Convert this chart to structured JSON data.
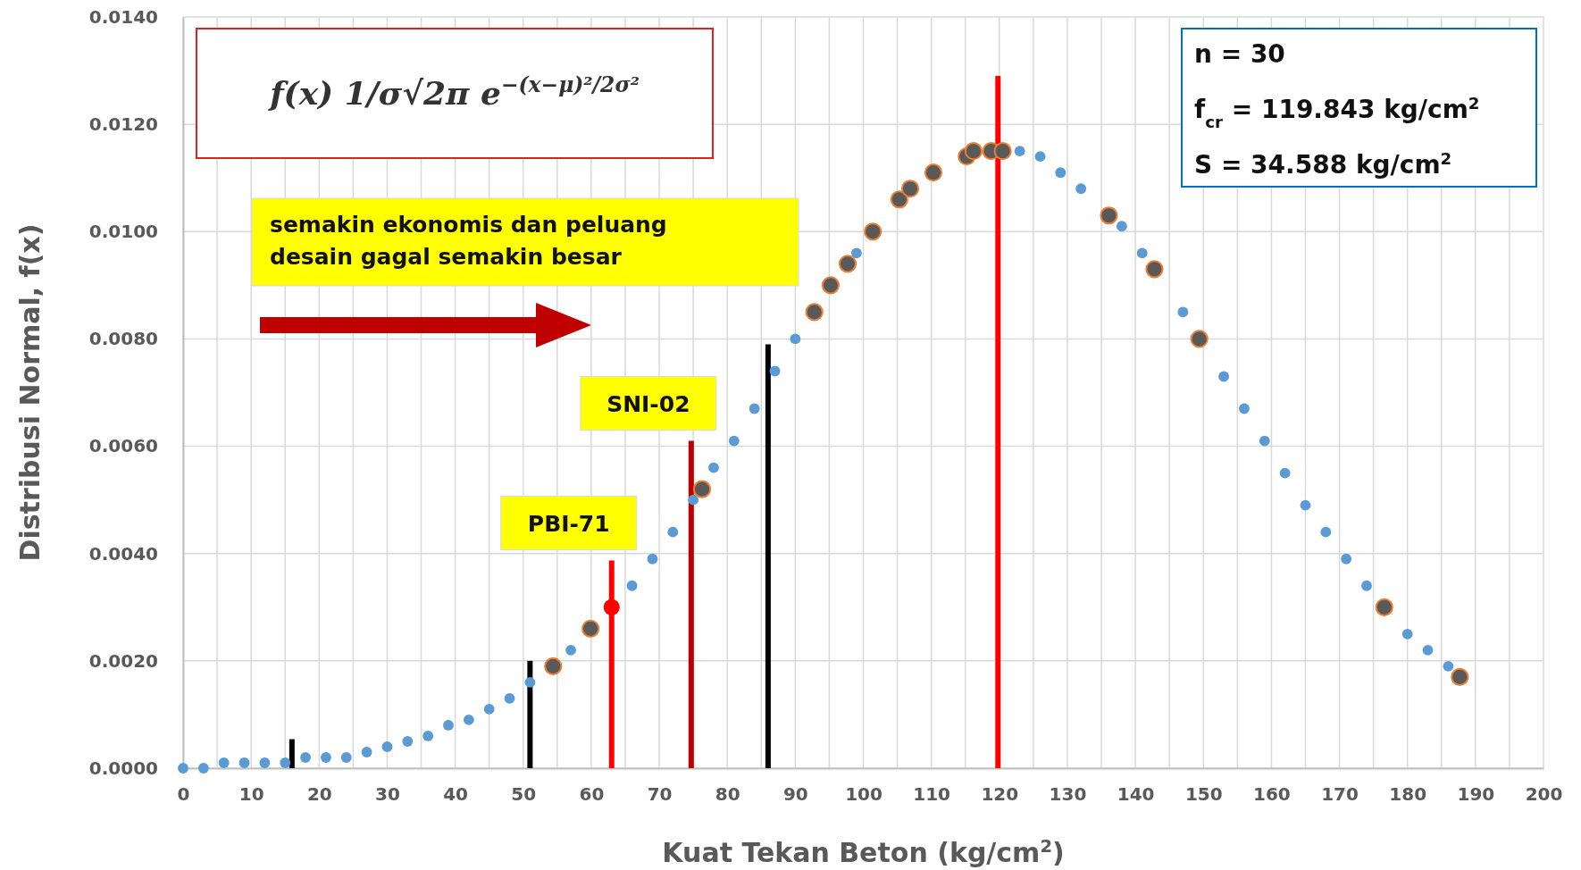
{
  "chart_data": {
    "type": "scatter",
    "xlabel": "Kuat Tekan Beton (kg/cm$^{2}$)",
    "ylabel": "Distribusi Normal, f(x)",
    "xlim": [
      0,
      200
    ],
    "ylim": [
      0,
      0.014
    ],
    "xticks": [
      0,
      {
        "value": 5,
        "label": null
      },
      10,
      {
        "value": 15,
        "label": null
      },
      20,
      {
        "value": 25,
        "label": null
      },
      30,
      {
        "value": 35,
        "label": null
      },
      40,
      {
        "value": 45,
        "label": null
      },
      50,
      {
        "value": 55,
        "label": null
      },
      60,
      {
        "value": 65,
        "label": null
      },
      70,
      {
        "value": 75,
        "label": null
      },
      80,
      {
        "value": 85,
        "label": null
      },
      90,
      {
        "value": 95,
        "label": null
      },
      100,
      {
        "value": 105,
        "label": null
      },
      110,
      {
        "value": 115,
        "label": null
      },
      120,
      {
        "value": 125,
        "label": null
      },
      130,
      {
        "value": 135,
        "label": null
      },
      140,
      {
        "value": 145,
        "label": null
      },
      150,
      {
        "value": 155,
        "label": null
      },
      160,
      {
        "value": 165,
        "label": null
      },
      170,
      {
        "value": 175,
        "label": null
      },
      180,
      {
        "value": 185,
        "label": null
      },
      190,
      {
        "value": 195,
        "label": null
      },
      200
    ],
    "yticks": [
      {
        "value": 0,
        "label": "0.0000"
      },
      {
        "value": 0.002,
        "label": "0.0020"
      },
      {
        "value": 0.004,
        "label": "0.0040"
      },
      {
        "value": 0.006,
        "label": "0.0060"
      },
      {
        "value": 0.008,
        "label": "0.0080"
      },
      {
        "value": 0.01,
        "label": "0.0100"
      },
      {
        "value": 0.012,
        "label": "0.0120"
      },
      {
        "value": 0.014,
        "label": "0.0140"
      }
    ],
    "grid": true,
    "marker": "circle",
    "series": [
      {
        "color": "#5b9bd5",
        "x": [
          0,
          3,
          6,
          9,
          12,
          15,
          18,
          21,
          24,
          27,
          30,
          33,
          36,
          39,
          42,
          45,
          48,
          51,
          57,
          66,
          69,
          72,
          75,
          78,
          81,
          84,
          87,
          90,
          99,
          123,
          126,
          129,
          132,
          138,
          141,
          147,
          153,
          156,
          159,
          162,
          165,
          168,
          171,
          174,
          180,
          183,
          186
        ],
        "values": [
          0.0,
          0.0,
          0.0001,
          0.0001,
          0.0001,
          0.0001,
          0.0002,
          0.0002,
          0.0002,
          0.0003,
          0.0004,
          0.0005,
          0.0006,
          0.0008,
          0.0009,
          0.0011,
          0.0013,
          0.0016,
          0.0022,
          0.0034,
          0.0039,
          0.0044,
          0.005,
          0.0056,
          0.0061,
          0.0067,
          0.0074,
          0.008,
          0.0096,
          0.0115,
          0.0114,
          0.0111,
          0.0108,
          0.0101,
          0.0096,
          0.0085,
          0.0073,
          0.0067,
          0.0061,
          0.0055,
          0.0049,
          0.0044,
          0.0039,
          0.0034,
          0.0025,
          0.0022,
          0.0019
        ]
      },
      {
        "color": "#595959",
        "x": [
          54.4,
          59.9,
          76.3,
          92.8,
          95.2,
          97.7,
          101.4,
          105.3,
          106.9,
          110.3,
          115.2,
          116.2,
          118.8,
          120.5,
          136.1,
          142.8,
          149.4,
          176.6,
          187.7
        ],
        "values": [
          0.0019,
          0.0026,
          0.0052,
          0.0085,
          0.009,
          0.0094,
          0.01,
          0.0106,
          0.0108,
          0.0111,
          0.0114,
          0.0115,
          0.0115,
          0.0115,
          0.0103,
          0.0093,
          0.008,
          0.003,
          0.0017
        ]
      },
      {
        "color": "#ff0000",
        "x": [
          63
        ],
        "values": [
          0.003
        ]
      },
      {
        "type": "line",
        "marker": "none",
        "color": "#000000",
        "x": [
          16,
          16
        ],
        "values": [
          0,
          0.00054
        ]
      },
      {
        "type": "line",
        "marker": "none",
        "color": "#000000",
        "x": [
          51,
          51
        ],
        "values": [
          0,
          0.002
        ]
      },
      {
        "type": "line",
        "marker": "none",
        "color": "#ff0000",
        "x": [
          63,
          63
        ],
        "values": [
          0,
          0.00387
        ]
      },
      {
        "type": "line",
        "marker": "none",
        "color": "#c00000",
        "x": [
          74.7,
          74.7
        ],
        "values": [
          0,
          0.0061
        ]
      },
      {
        "type": "line",
        "marker": "none",
        "color": "#000000",
        "x": [
          86,
          86
        ],
        "values": [
          0,
          0.0079
        ]
      },
      {
        "type": "line",
        "marker": "none",
        "color": "#ff0000",
        "x": [
          119.8,
          119.8
        ],
        "values": [
          0,
          0.0129
        ]
      }
    ],
    "annotations": [
      "f(x) 1/σ√2π e$^{−(x−μ)²/2σ²}$",
      "semakin ekonomis dan peluang desain gagal semakin besar",
      "n = 30",
      "f$_{cr}$ = 119.843 kg/cm$^{2}$",
      "S = 34.588 kg/cm$^{2}$",
      {
        "text": "PBI-71",
        "x": 63,
        "y": 0.00387
      },
      {
        "text": "SNI-02",
        "x": 74.7,
        "y": 0.0061
      }
    ]
  }
}
